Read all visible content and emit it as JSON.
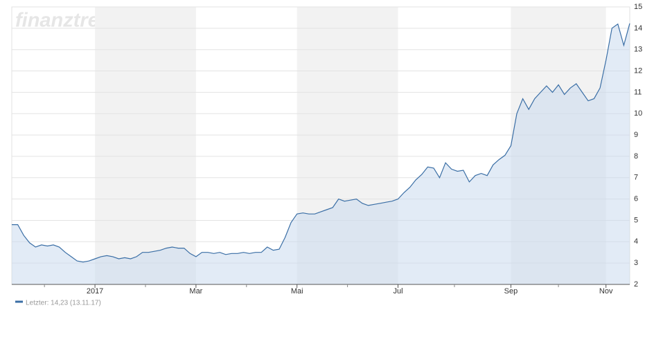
{
  "chart_data": {
    "type": "area",
    "watermark": "finanztreff.de:",
    "legend_label": "Letzter: 14,23 (13.11.17)",
    "color": "#3a6ea5",
    "categories": [
      null,
      null,
      null,
      null,
      null,
      null,
      null,
      null,
      null,
      null,
      null,
      null,
      null,
      null,
      "2017",
      null,
      null,
      null,
      null,
      null,
      null,
      null,
      null,
      null,
      null,
      null,
      null,
      null,
      null,
      null,
      null,
      "Mar",
      null,
      null,
      null,
      null,
      null,
      null,
      null,
      null,
      null,
      null,
      null,
      null,
      null,
      null,
      null,
      null,
      "Mai",
      null,
      null,
      null,
      null,
      null,
      null,
      null,
      null,
      null,
      null,
      null,
      null,
      null,
      null,
      null,
      null,
      "Jul",
      null,
      null,
      null,
      null,
      null,
      null,
      null,
      null,
      null,
      null,
      null,
      null,
      null,
      null,
      null,
      null,
      null,
      null,
      "Sep",
      null,
      null,
      null,
      null,
      null,
      null,
      null,
      null,
      null,
      null,
      null,
      null,
      null,
      null,
      null,
      "Nov",
      null,
      null,
      null,
      null
    ],
    "values": [
      4.8,
      4.8,
      4.3,
      3.95,
      3.75,
      3.85,
      3.8,
      3.85,
      3.75,
      3.5,
      3.3,
      3.1,
      3.05,
      3.1,
      3.2,
      3.3,
      3.35,
      3.3,
      3.2,
      3.25,
      3.2,
      3.3,
      3.5,
      3.5,
      3.55,
      3.6,
      3.7,
      3.75,
      3.7,
      3.7,
      3.45,
      3.3,
      3.5,
      3.5,
      3.45,
      3.5,
      3.4,
      3.45,
      3.45,
      3.5,
      3.45,
      3.5,
      3.5,
      3.75,
      3.6,
      3.65,
      4.2,
      4.9,
      5.3,
      5.35,
      5.3,
      5.3,
      5.4,
      5.5,
      5.6,
      6.0,
      5.9,
      5.95,
      6.0,
      5.8,
      5.7,
      5.75,
      5.8,
      5.85,
      5.9,
      6.0,
      6.3,
      6.55,
      6.9,
      7.15,
      7.5,
      7.45,
      7.0,
      7.7,
      7.4,
      7.3,
      7.35,
      6.8,
      7.1,
      7.2,
      7.1,
      7.6,
      7.85,
      8.05,
      8.5,
      10.0,
      10.7,
      10.2,
      10.7,
      11.0,
      11.3,
      11.0,
      11.35,
      10.9,
      11.2,
      11.4,
      11.0,
      10.6,
      10.7,
      11.2,
      12.5,
      14.0,
      14.2,
      13.2,
      14.23
    ],
    "ylim": [
      2,
      15
    ],
    "yticks": [
      2,
      3,
      4,
      5,
      6,
      7,
      8,
      9,
      10,
      11,
      12,
      13,
      14,
      15
    ],
    "grid": true
  }
}
